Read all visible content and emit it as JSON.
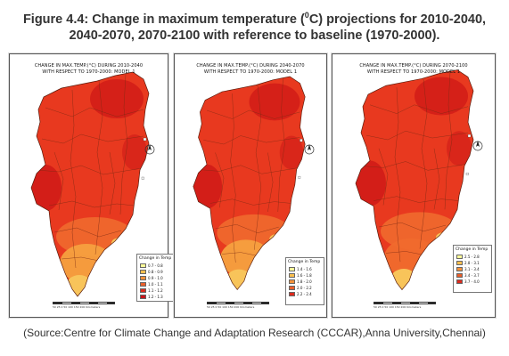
{
  "figure": {
    "title_prefix": "Figure 4.4: Change in maximum temperature (",
    "title_sup": "0",
    "title_line1_suffix": "C) projections for 2010-2040,",
    "title_line2": "2040-2070, 2070-2100 with reference to baseline (1970-2000).",
    "source": "(Source:Centre for Climate Change and Adaptation Research (CCCAR),Anna University,Chennai)"
  },
  "maps": [
    {
      "title_line1": "CHANGE IN MAX.TEMP.(°C) DURING 2010-2040",
      "title_line2": "WITH RESPECT TO 1970-2000: MODEL 1",
      "legend_title": "Change in Temp",
      "legend_items": [
        "0.7 - 0.8",
        "0.8 - 0.9",
        "0.9 - 1.0",
        "1.0 - 1.1",
        "1.1 - 1.2",
        "1.2 - 1.3"
      ],
      "scale_label": "Kilometers"
    },
    {
      "title_line1": "CHANGE IN MAX.TEMP.(°C) DURING 2040-2070",
      "title_line2": "WITH RESPECT TO 1970-2000: MODEL 1",
      "legend_title": "Change in Temp",
      "legend_items": [
        "1.4 - 1.6",
        "1.6 - 1.8",
        "1.8 - 2.0",
        "2.0 - 2.2",
        "2.2 - 2.4"
      ],
      "scale_label": "Kilometers"
    },
    {
      "title_line1": "CHANGE IN MAX.TEMP.(°C) DURING 2070-2100",
      "title_line2": "WITH RESPECT TO 1970-2000: MODEL 1",
      "legend_title": "Change in Temp",
      "legend_items": [
        "2.5 - 2.8",
        "2.8 - 3.1",
        "3.1 - 3.4",
        "3.4 - 3.7",
        "3.7 - 4.0"
      ],
      "scale_label": "Kilometers"
    }
  ],
  "scale_ticks": "50 25 0 50 100 150 200",
  "legend_colors": [
    "#ffff99",
    "#fbbf4f",
    "#f3913a",
    "#ea5f2a",
    "#dd2a1d",
    "#c8141a"
  ],
  "map_colors": {
    "base": "#e8391f",
    "deep": "#cf1a17",
    "mid": "#f06a2d",
    "light": "#f6a03f",
    "pale": "#f8c45a",
    "yellow": "#fdf07a",
    "border": "#7a2a14"
  }
}
